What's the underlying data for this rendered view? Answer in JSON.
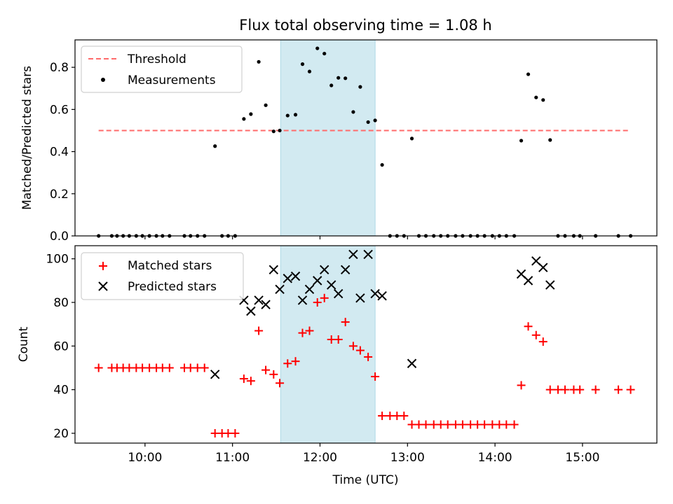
{
  "figure": {
    "title": "Flux total observing time = 1.08 h",
    "xlabel": "Time (UTC)",
    "xticks": [
      {
        "t": 10,
        "label": "10:00"
      },
      {
        "t": 11,
        "label": "11:00"
      },
      {
        "t": 12,
        "label": "12:00"
      },
      {
        "t": 13,
        "label": "13:00"
      },
      {
        "t": 14,
        "label": "14:00"
      },
      {
        "t": 15,
        "label": "15:00"
      }
    ],
    "xlim": [
      9.2,
      15.85
    ],
    "shaded_span": {
      "from": 11.55,
      "to": 12.63,
      "color": "#add8e6"
    }
  },
  "chart_data": [
    {
      "type": "scatter",
      "ylabel": "Matched/Predicted stars",
      "ylim": [
        0,
        0.93
      ],
      "yticks": [
        {
          "v": 0,
          "label": "0.0"
        },
        {
          "v": 0.2,
          "label": "0.2"
        },
        {
          "v": 0.4,
          "label": "0.4"
        },
        {
          "v": 0.6,
          "label": "0.6"
        },
        {
          "v": 0.8,
          "label": "0.8"
        }
      ],
      "legend": {
        "position": "top-left",
        "entries": [
          {
            "label": "Threshold",
            "marker": "dashed-line",
            "color": "#ff6b6b"
          },
          {
            "label": "Measurements",
            "marker": "dot",
            "color": "#000000"
          }
        ]
      },
      "threshold": {
        "value": 0.5,
        "x_from": 9.47,
        "x_to": 15.55,
        "color": "#ff6b6b"
      },
      "measurements": {
        "x": [
          9.47,
          9.62,
          9.68,
          9.75,
          9.82,
          9.9,
          9.97,
          10.05,
          10.13,
          10.2,
          10.28,
          10.45,
          10.52,
          10.6,
          10.68,
          10.8,
          10.88,
          10.95,
          11.03,
          11.13,
          11.21,
          11.3,
          11.38,
          11.47,
          11.54,
          11.63,
          11.72,
          11.8,
          11.88,
          11.97,
          12.05,
          12.13,
          12.21,
          12.29,
          12.38,
          12.46,
          12.55,
          12.63,
          12.71,
          12.8,
          12.88,
          12.96,
          13.05,
          13.13,
          13.21,
          13.3,
          13.38,
          13.46,
          13.55,
          13.63,
          13.72,
          13.8,
          13.88,
          13.97,
          14.05,
          14.13,
          14.22,
          14.3,
          14.38,
          14.47,
          14.55,
          14.63,
          14.72,
          14.8,
          14.9,
          14.97,
          15.15,
          15.41,
          15.55
        ],
        "y": [
          0,
          0,
          0,
          0,
          0,
          0,
          0,
          0,
          0,
          0,
          0,
          0,
          0,
          0,
          0,
          0.426,
          0,
          0,
          0,
          0.555,
          0.578,
          0.826,
          0.62,
          0.496,
          0.5,
          0.571,
          0.575,
          0.815,
          0.78,
          0.89,
          0.865,
          0.714,
          0.75,
          0.748,
          0.588,
          0.707,
          0.54,
          0.548,
          0.337,
          0,
          0,
          0,
          0.462,
          0,
          0,
          0,
          0,
          0,
          0,
          0,
          0,
          0,
          0,
          0,
          0,
          0,
          0,
          0.452,
          0.767,
          0.657,
          0.645,
          0.455,
          0,
          0,
          0,
          0,
          0,
          0,
          0
        ]
      }
    },
    {
      "type": "scatter",
      "ylabel": "Count",
      "ylim": [
        15.5,
        106
      ],
      "yticks": [
        {
          "v": 20,
          "label": "20"
        },
        {
          "v": 40,
          "label": "40"
        },
        {
          "v": 60,
          "label": "60"
        },
        {
          "v": 80,
          "label": "80"
        },
        {
          "v": 100,
          "label": "100"
        }
      ],
      "legend": {
        "position": "top-left",
        "entries": [
          {
            "label": "Matched stars",
            "marker": "plus",
            "color": "#ff0000"
          },
          {
            "label": "Predicted stars",
            "marker": "x",
            "color": "#000000"
          }
        ]
      },
      "series": [
        {
          "name": "Matched stars",
          "marker": "plus",
          "color": "#ff0000",
          "x": [
            9.47,
            9.62,
            9.68,
            9.75,
            9.82,
            9.9,
            9.97,
            10.05,
            10.13,
            10.2,
            10.28,
            10.45,
            10.52,
            10.6,
            10.68,
            10.8,
            10.88,
            10.95,
            11.03,
            11.13,
            11.21,
            11.3,
            11.38,
            11.47,
            11.54,
            11.63,
            11.72,
            11.8,
            11.88,
            11.97,
            12.05,
            12.13,
            12.21,
            12.29,
            12.38,
            12.46,
            12.55,
            12.63,
            12.71,
            12.8,
            12.88,
            12.96,
            13.05,
            13.13,
            13.21,
            13.3,
            13.38,
            13.46,
            13.55,
            13.63,
            13.72,
            13.8,
            13.88,
            13.97,
            14.05,
            14.13,
            14.22,
            14.3,
            14.38,
            14.47,
            14.55,
            14.63,
            14.72,
            14.8,
            14.9,
            14.97,
            15.15,
            15.41,
            15.55
          ],
          "y": [
            50,
            50,
            50,
            50,
            50,
            50,
            50,
            50,
            50,
            50,
            50,
            50,
            50,
            50,
            50,
            20,
            20,
            20,
            20,
            45,
            44,
            67,
            49,
            47,
            43,
            52,
            53,
            66,
            67,
            80,
            82,
            63,
            63,
            71,
            60,
            58,
            55,
            46,
            28,
            28,
            28,
            28,
            24,
            24,
            24,
            24,
            24,
            24,
            24,
            24,
            24,
            24,
            24,
            24,
            24,
            24,
            24,
            42,
            69,
            65,
            62,
            40,
            40,
            40,
            40,
            40,
            40,
            40,
            40
          ]
        },
        {
          "name": "Predicted stars",
          "marker": "x",
          "color": "#000000",
          "x": [
            10.8,
            11.13,
            11.21,
            11.3,
            11.38,
            11.47,
            11.54,
            11.63,
            11.72,
            11.8,
            11.88,
            11.97,
            12.05,
            12.13,
            12.21,
            12.29,
            12.38,
            12.46,
            12.55,
            12.63,
            12.71,
            13.05,
            14.3,
            14.38,
            14.47,
            14.55,
            14.63
          ],
          "y": [
            47,
            81,
            76,
            81,
            79,
            95,
            86,
            91,
            92,
            81,
            86,
            90,
            95,
            88,
            84,
            95,
            102,
            82,
            102,
            84,
            83,
            52,
            93,
            90,
            99,
            96,
            88
          ]
        }
      ]
    }
  ]
}
